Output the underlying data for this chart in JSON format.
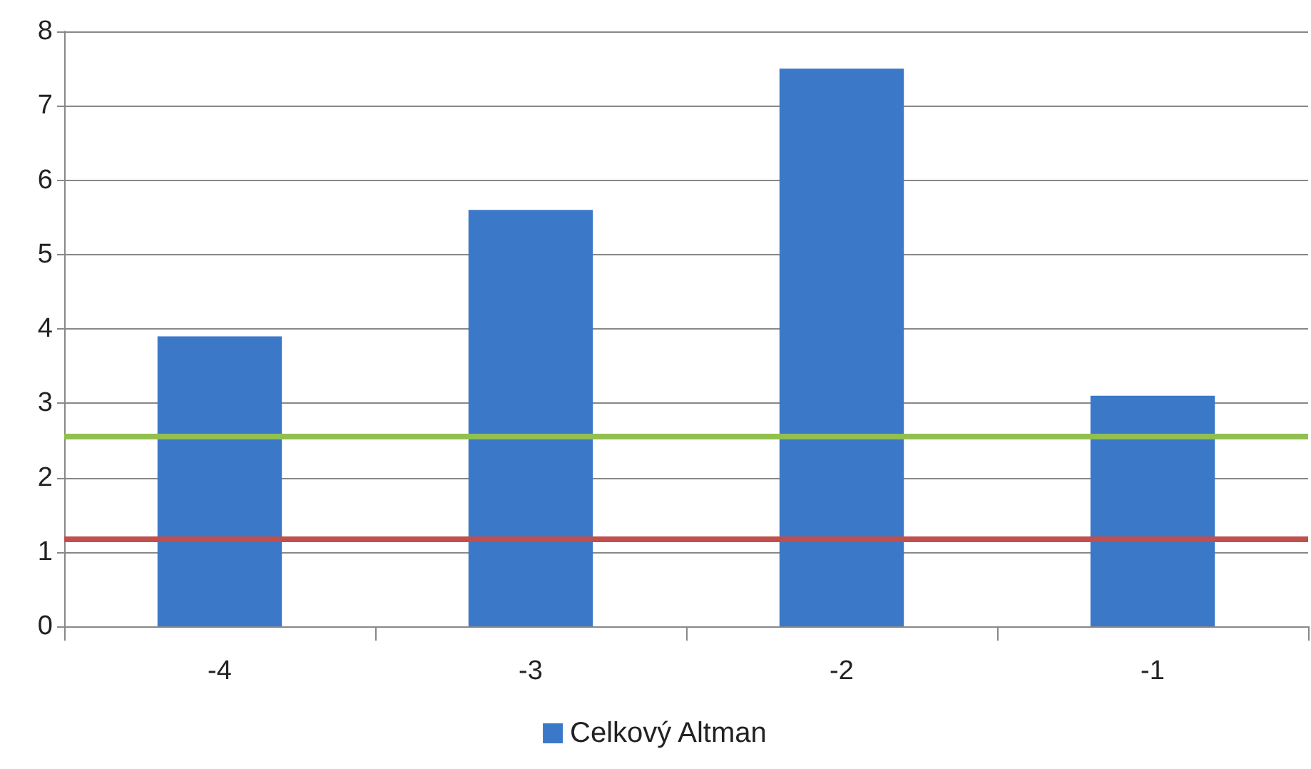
{
  "chart_data": {
    "type": "bar",
    "categories": [
      "-4",
      "-3",
      "-2",
      "-1"
    ],
    "series": [
      {
        "name": "Celkový Altman",
        "color": "#3b78c8",
        "values": [
          3.9,
          5.6,
          7.5,
          3.1
        ]
      }
    ],
    "ylim": [
      0,
      8
    ],
    "yticks": [
      0,
      1,
      2,
      3,
      4,
      5,
      6,
      7,
      8
    ],
    "grid": "y",
    "legend": "bottom",
    "ref_lines": [
      {
        "axis": "y",
        "value": 2.55,
        "color": "#92c050"
      },
      {
        "axis": "y",
        "value": 1.18,
        "color": "#c0504d"
      }
    ]
  }
}
